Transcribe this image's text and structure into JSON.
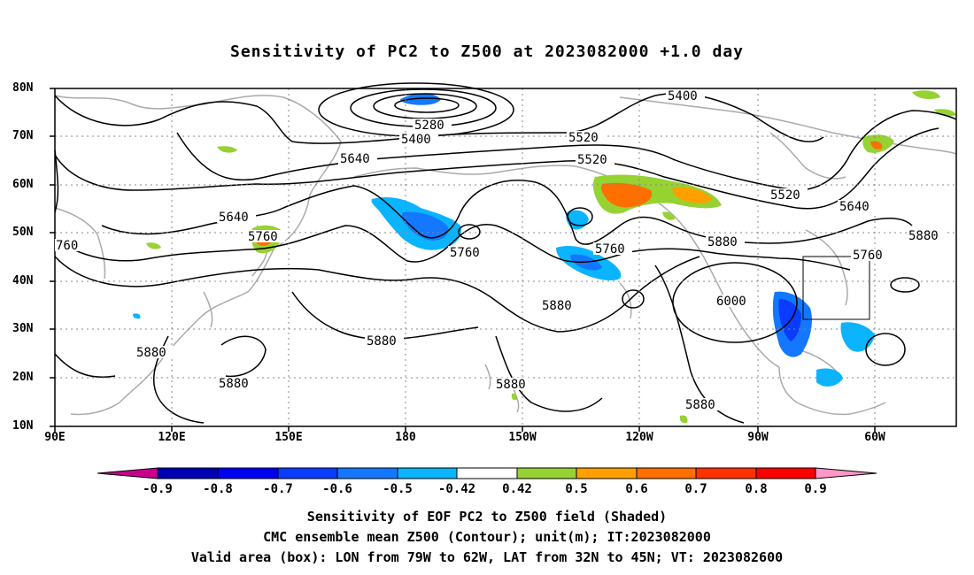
{
  "title": "Sensitivity of PC2 to Z500 at 2023082000 +1.0 day",
  "lat_labels": [
    "80N",
    "70N",
    "60N",
    "50N",
    "40N",
    "30N",
    "20N",
    "10N"
  ],
  "lon_labels": [
    "90E",
    "120E",
    "150E",
    "180",
    "150W",
    "120W",
    "90W",
    "60W"
  ],
  "contour_labels": [
    "5400",
    "5280",
    "5400",
    "5520",
    "5640",
    "5520",
    "5520",
    "5640",
    "5640",
    "5760",
    "760",
    "5760",
    "5760",
    "5880",
    "6000",
    "5760",
    "5880",
    "5880",
    "5880",
    "5880",
    "5880",
    "5880",
    "5880"
  ],
  "colorbar": {
    "labels": [
      "-0.9",
      "-0.8",
      "-0.7",
      "-0.6",
      "-0.5",
      "-0.42",
      "0.42",
      "0.5",
      "0.6",
      "0.7",
      "0.8",
      "0.9"
    ],
    "colors": [
      "#c8008c",
      "#0000b4",
      "#0000f0",
      "#0a3cff",
      "#1478ff",
      "#0ab4ff",
      "#00d2ff",
      "#ffffff",
      "#96d232",
      "#ffa000",
      "#ff6e00",
      "#ff3200",
      "#ff0000",
      "#ff96c8"
    ]
  },
  "caption_lines": [
    "Sensitivity of EOF PC2 to Z500 field (Shaded)",
    "CMC ensemble mean Z500 (Contour); unit(m); IT:2023082000",
    "Valid area (box): LON from 79W to 62W, LAT from 32N to 45N; VT: 2023082600"
  ]
}
